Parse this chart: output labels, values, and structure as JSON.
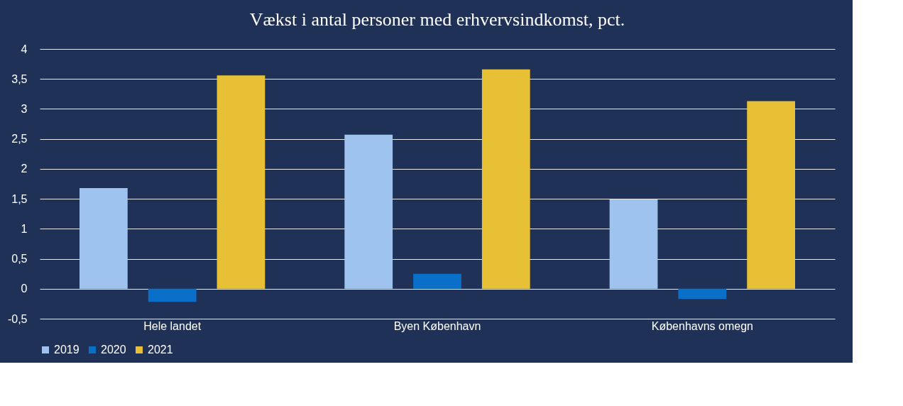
{
  "chart_data": {
    "type": "bar",
    "title": "Vækst i antal personer med erhvervsindkomst, pct.",
    "categories": [
      "Hele landet",
      "Byen København",
      "Københavns omegn"
    ],
    "series": [
      {
        "name": "2019",
        "color": "#9dc3ee",
        "values": [
          1.68,
          2.57,
          1.49
        ]
      },
      {
        "name": "2020",
        "color": "#0a6fc8",
        "values": [
          -0.22,
          0.25,
          -0.17
        ]
      },
      {
        "name": "2021",
        "color": "#e8c035",
        "values": [
          3.56,
          3.66,
          3.13
        ]
      }
    ],
    "ylim": [
      -0.5,
      4
    ],
    "yticks": [
      {
        "value": -0.5,
        "label": "-0,5"
      },
      0,
      {
        "value": 0.5,
        "label": "0,5"
      },
      1,
      {
        "value": 1.5,
        "label": "1,5"
      },
      2,
      {
        "value": 2.5,
        "label": "2,5"
      },
      3,
      {
        "value": 3.5,
        "label": "3,5"
      },
      4
    ],
    "grid": "y",
    "legend": "bottom"
  }
}
